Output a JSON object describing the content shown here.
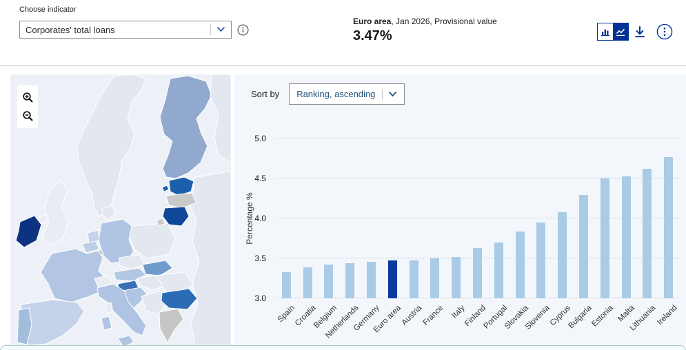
{
  "header": {
    "label": "Choose indicator",
    "indicator": "Corporates' total loans",
    "selection_bold": "Euro area",
    "selection_rest": ", Jan 2026, Provisional value",
    "value": "3.47%"
  },
  "sort": {
    "label": "Sort by",
    "value": "Ranking, ascending"
  },
  "toolbar": {
    "icons": [
      "bar-chart-toggle-icon",
      "line-chart-toggle-icon",
      "download-icon",
      "kebab-menu-icon"
    ],
    "active_view": "bar-chart"
  },
  "map": {
    "controls": [
      "zoom-in-magnifier-icon",
      "zoom-out-magnifier-icon"
    ],
    "fills": {
      "sea": "#edf1f7",
      "finland": "#91a9ce",
      "estonia": "#1c5fad",
      "latvia": "#c9c9c9",
      "lithuania": "#0f4899",
      "ireland": "#0d3380",
      "france": "#b2c6e3",
      "germany": "#b0c5e3",
      "netherlands": "#c2d3ea",
      "belgium": "#bcd0e8",
      "luxembourg": "#c9c9c9",
      "spain": "#c4d2ea",
      "portugal": "#a3bedd",
      "italy": "#aec4e2",
      "austria": "#b2c7e3",
      "slovakia": "#6f9ccb",
      "slovenia": "#3a71b3",
      "croatia": "#b0c5e3",
      "bulgaria": "#2b6cb5",
      "greece": "#c6c6c6"
    }
  },
  "chart_data": {
    "type": "bar",
    "categories": [
      "Spain",
      "Croatia",
      "Belgium",
      "Netherlands",
      "Germany",
      "Euro area",
      "Austria",
      "France",
      "Italy",
      "Finland",
      "Portugal",
      "Slovakia",
      "Slovenia",
      "Cyprus",
      "Bulgaria",
      "Estonia",
      "Malta",
      "Lithuania",
      "Ireland"
    ],
    "values": [
      3.33,
      3.39,
      3.42,
      3.44,
      3.46,
      3.47,
      3.47,
      3.5,
      3.52,
      3.63,
      3.7,
      3.84,
      3.95,
      4.08,
      4.29,
      4.5,
      4.53,
      4.62,
      4.77
    ],
    "highlight_category": "Euro area",
    "title": "",
    "xlabel": "",
    "ylabel": "Percentage %",
    "ylim": [
      3.0,
      5.0
    ],
    "yticks": [
      3.0,
      3.5,
      4.0,
      4.5,
      5.0
    ],
    "grid": "dotted horizontal",
    "legend": "none",
    "bar_color": "#a9cbe6",
    "highlight_color": "#0a3a9e"
  },
  "colors": {
    "accent_blue": "#003299",
    "chart_panel_bg": "#f3f7fb",
    "map_bg": "#edf1f7",
    "divider": "#cfcfcf",
    "slider_border": "#a9cdc8"
  }
}
